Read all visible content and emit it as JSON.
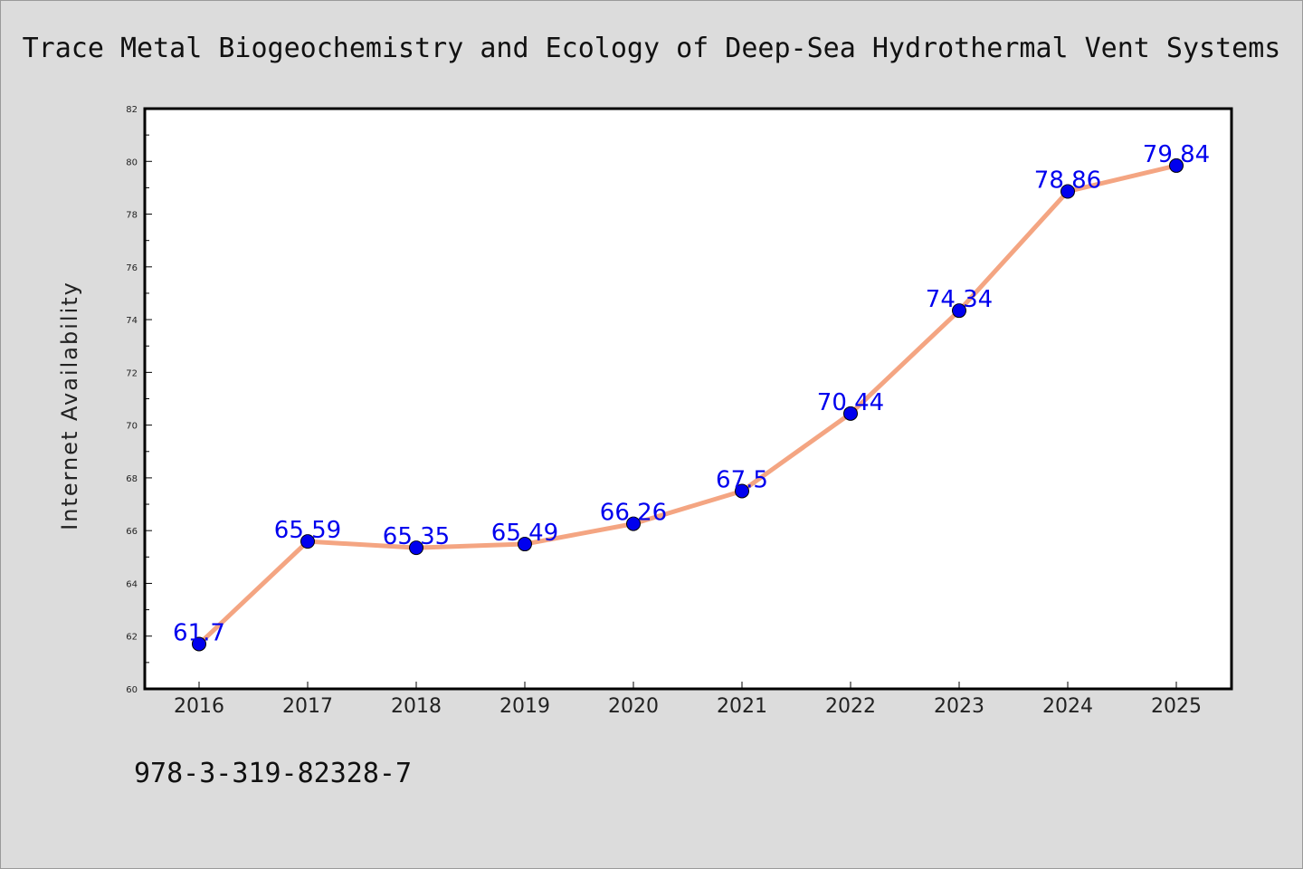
{
  "chart_data": {
    "type": "line",
    "title": "Trace Metal Biogeochemistry and Ecology of Deep-Sea Hydrothermal Vent Systems",
    "xlabel": "",
    "ylabel": "Internet Availability",
    "categories": [
      "2016",
      "2017",
      "2018",
      "2019",
      "2020",
      "2021",
      "2022",
      "2023",
      "2024",
      "2025"
    ],
    "values": [
      61.7,
      65.59,
      65.35,
      65.49,
      66.26,
      67.5,
      70.44,
      74.34,
      78.86,
      79.84
    ],
    "data_labels": [
      "61.7",
      "65.59",
      "65.35",
      "65.49",
      "66.26",
      "67.5",
      "70.44",
      "74.34",
      "78.86",
      "79.84"
    ],
    "ylim": [
      60,
      82
    ],
    "yticks": [
      60,
      62,
      64,
      66,
      68,
      70,
      72,
      74,
      76,
      78,
      80,
      82
    ],
    "grid": false,
    "legend": "none",
    "colors": {
      "line": "#f4a582",
      "marker": "#0000ee",
      "data_label": "#0000ee",
      "background": "#dcdcdc",
      "plot_background": "#ffffff"
    }
  },
  "footer": {
    "isbn": "978-3-319-82328-7"
  }
}
